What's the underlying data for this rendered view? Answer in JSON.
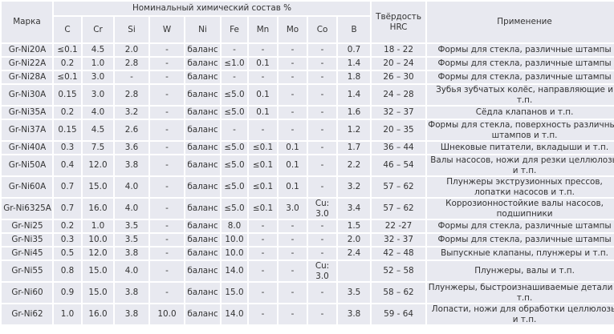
{
  "header": {
    "grade": "Марка",
    "composition": "Номинальный химический состав %",
    "hardness": "Твёрдость HRC",
    "application": "Применение",
    "elements": [
      "C",
      "Cr",
      "Si",
      "W",
      "Ni",
      "Fe",
      "Mn",
      "Mo",
      "Co",
      "B"
    ]
  },
  "rows": [
    {
      "cells": [
        "Gr-Ni20A",
        "≤0.1",
        "4.5",
        "2.0",
        "-",
        "баланс",
        "-",
        "-",
        "-",
        "-",
        "0.7",
        "18 - 22",
        "Формы для стекла, различные штампы"
      ]
    },
    {
      "cells": [
        "Gr-Ni22A",
        "0.2",
        "1.0",
        "2.8",
        "-",
        "баланс",
        "≤1.0",
        "0.1",
        "-",
        "-",
        "1.4",
        "20 – 24",
        "Формы для стекла, различные штампы"
      ]
    },
    {
      "cells": [
        "Gr-Ni28A",
        "≤0.1",
        "3.0",
        "-",
        "-",
        "баланс",
        "-",
        "-",
        "-",
        "-",
        "1.8",
        "26 – 30",
        "Формы для стекла, различные штампы"
      ]
    },
    {
      "cells": [
        "Gr-Ni30A",
        "0.15",
        "3.0",
        "2.8",
        "-",
        "баланс",
        "≤5.0",
        "0.1",
        "-",
        "-",
        "1.4",
        "24 – 28",
        "Зубья зубчатых колёс, направляющие и т.п."
      ]
    },
    {
      "cells": [
        "Gr-Ni35A",
        "0.2",
        "4.0",
        "3.2",
        "-",
        "баланс",
        "≤5.0",
        "0.1",
        "-",
        "-",
        "1.6",
        "32 – 37",
        "Сёдла клапанов и т.п."
      ]
    },
    {
      "cells": [
        "Gr-Ni37A",
        "0.15",
        "4.5",
        "2.6",
        "-",
        "баланс",
        "-",
        "-",
        "-",
        "-",
        "1.2",
        "20 – 35",
        "Формы для стекла, поверхность различных штампов и т.п."
      ]
    },
    {
      "cells": [
        "Gr-Ni40A",
        "0.3",
        "7.5",
        "3.6",
        "-",
        "баланс",
        "≤5.0",
        "≤0.1",
        "0.1",
        "-",
        "1.7",
        "36 – 44",
        "Шнековые питатели, вкладыши и т.п."
      ]
    },
    {
      "cells": [
        "Gr-Ni50A",
        "0.4",
        "12.0",
        "3.8",
        "-",
        "баланс",
        "≤5.0",
        "≤0.1",
        "0.1",
        "-",
        "2.2",
        "46 – 54",
        "Валы насосов, ножи для резки целлюлозы и т.п."
      ]
    },
    {
      "cells": [
        "Gr-Ni60A",
        "0.7",
        "15.0",
        "4.0",
        "-",
        "баланс",
        "≤5.0",
        "≤0.1",
        "0.1",
        "-",
        "3.2",
        "57 – 62",
        "Плунжеры экструзионных прессов, лопатки насосов и т.п."
      ]
    },
    {
      "cells": [
        "Gr-Ni6325A",
        "0.7",
        "16.0",
        "4.0",
        "-",
        "баланс",
        "≤5.0",
        "≤0.1",
        "3.0",
        "Cu: 3.0",
        "3.4",
        "57 – 62",
        "Коррозионностойкие валы насосов, подшипники"
      ]
    },
    {
      "cells": [
        "Gr-Ni25",
        "0.2",
        "1.0",
        "3.5",
        "-",
        "баланс",
        "8.0",
        "-",
        "-",
        "-",
        "1.5",
        "22 -27",
        "Формы для стекла, различные штампы"
      ]
    },
    {
      "cells": [
        "Gr-Ni35",
        "0.3",
        "10.0",
        "3.5",
        "-",
        "баланс",
        "10.0",
        "-",
        "-",
        "-",
        "2.0",
        "32 - 37",
        "Формы для стекла, различные штампы"
      ]
    },
    {
      "cells": [
        "Gr-Ni45",
        "0.5",
        "12.0",
        "3.8",
        "-",
        "баланс",
        "10.0",
        "-",
        "-",
        "-",
        "2.4",
        "42 – 48",
        "Выпускные клапаны, плунжеры и т.п."
      ]
    },
    {
      "cells": [
        "Gr-Ni55",
        "0.8",
        "15.0",
        "4.0",
        "-",
        "баланс",
        "14.0",
        "-",
        "-",
        "Cu: 3.0",
        "",
        "52 – 58",
        "Плунжеры, валы и т.п."
      ]
    },
    {
      "cells": [
        "Gr-Ni60",
        "0.9",
        "15.0",
        "3.8",
        "-",
        "баланс",
        "15.0",
        "-",
        "-",
        "-",
        "3.5",
        "58 – 62",
        "Плунжеры, быстроизнашиваемые детали и т.п."
      ]
    },
    {
      "cells": [
        "Gr-Ni62",
        "1.0",
        "16.0",
        "3.8",
        "10.0",
        "баланс",
        "14.0",
        "-",
        "-",
        "-",
        "3.8",
        "59 - 64",
        "Лопасти, ножи для обработки целлюлозы и т.п."
      ]
    }
  ]
}
